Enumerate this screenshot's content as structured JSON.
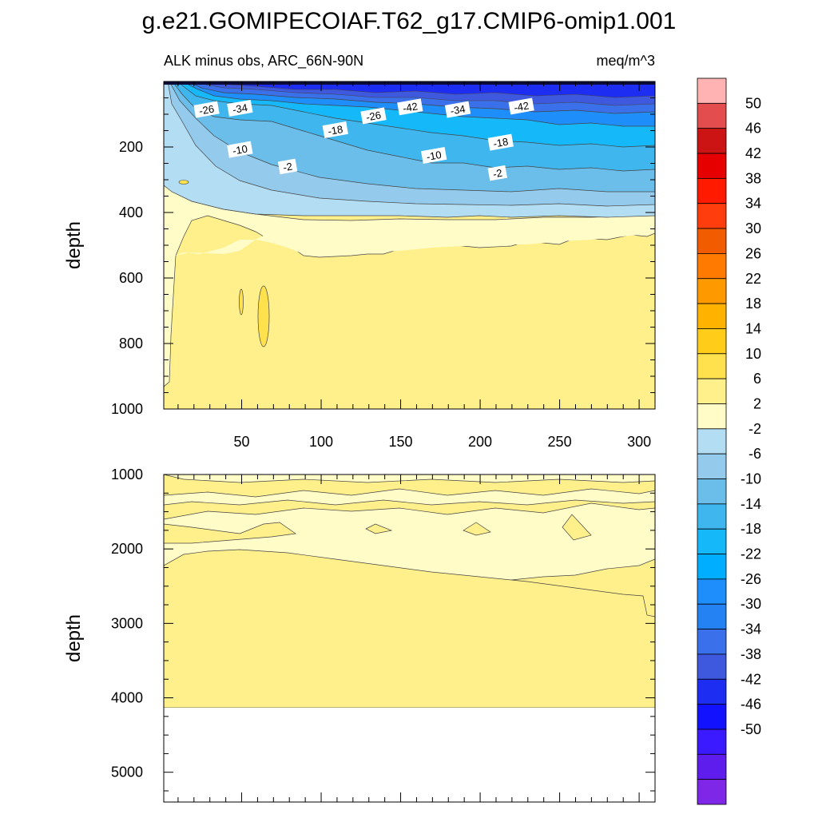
{
  "chart_data": [
    {
      "type": "heatmap",
      "title": "g.e21.GOMIPECOIAF.T62_g17.CMIP6-omip1.001",
      "left_label": "ALK minus obs, ARC_66N-90N",
      "right_label": "meq/m^3",
      "xlabel": "",
      "ylabel": "depth",
      "xlim": [
        1,
        310
      ],
      "ylim": [
        0,
        1000
      ],
      "y_reversed": true,
      "xticks": [
        50,
        100,
        150,
        200,
        250,
        300
      ],
      "yticks": [
        200,
        400,
        600,
        800,
        1000
      ],
      "contour_labels": [
        {
          "text": "-26",
          "x": 28,
          "depth": 88
        },
        {
          "text": "-34",
          "x": 49,
          "depth": 84
        },
        {
          "text": "-18",
          "x": 109,
          "depth": 150
        },
        {
          "text": "-26",
          "x": 133,
          "depth": 107
        },
        {
          "text": "-42",
          "x": 156,
          "depth": 80
        },
        {
          "text": "-34",
          "x": 186,
          "depth": 88
        },
        {
          "text": "-42",
          "x": 226,
          "depth": 78
        },
        {
          "text": "-10",
          "x": 49,
          "depth": 210
        },
        {
          "text": "-10",
          "x": 171,
          "depth": 228
        },
        {
          "text": "-18",
          "x": 213,
          "depth": 188
        },
        {
          "text": "-2",
          "x": 79,
          "depth": 262
        },
        {
          "text": "-2",
          "x": 211,
          "depth": 282
        }
      ],
      "value_levels": [
        "-46 to -42 at surface",
        "-26",
        "-18",
        "-10",
        "-2",
        "2 to 6 below 300"
      ]
    },
    {
      "type": "heatmap",
      "xlabel": "",
      "ylabel": "depth",
      "xlim": [
        1,
        310
      ],
      "ylim": [
        1000,
        5400
      ],
      "y_reversed": true,
      "xticks": [
        50,
        100,
        150,
        200,
        250,
        300
      ],
      "yticks": [
        1000,
        2000,
        3000,
        4000,
        5000
      ],
      "data_bottom_depth": 4100,
      "value_levels": [
        "-2 to 2",
        "2 to 6"
      ]
    }
  ],
  "colorbar": {
    "colors": [
      "#FFB3B3",
      "#E34D4D",
      "#CC1414",
      "#E60000",
      "#FF1A00",
      "#FF3D0D",
      "#F25C00",
      "#FF7A00",
      "#FF9900",
      "#FFB300",
      "#FFCC1A",
      "#FFE04D",
      "#FFF08C",
      "#FFFCC8",
      "#B3DDF2",
      "#94CBED",
      "#6BBDEA",
      "#3FB7EE",
      "#15B9FA",
      "#00AEFF",
      "#1E8EFB",
      "#2482F2",
      "#3A70EA",
      "#3E58DE",
      "#1D2DF2",
      "#1212FF",
      "#3B1AFF",
      "#5E1DEC",
      "#7F27E6"
    ],
    "labels": [
      "50",
      "46",
      "42",
      "38",
      "34",
      "30",
      "26",
      "22",
      "18",
      "14",
      "10",
      "6",
      "2",
      "-2",
      "-6",
      "-10",
      "-14",
      "-18",
      "-22",
      "-26",
      "-30",
      "-34",
      "-38",
      "-42",
      "-46",
      "-50"
    ]
  }
}
